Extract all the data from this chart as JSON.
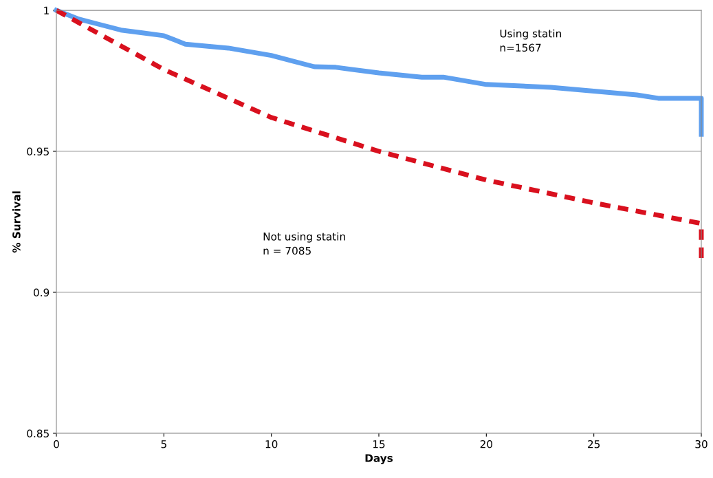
{
  "chart_data": {
    "type": "line",
    "xlabel": "Days",
    "ylabel": "% Survival",
    "series": [
      {
        "color": "#5fa0ef",
        "line_style": "solid",
        "x": [
          0,
          1,
          2,
          3,
          4,
          5,
          6,
          8,
          10,
          11,
          12,
          13,
          15,
          17,
          18,
          20,
          23,
          24,
          27,
          28,
          30,
          30
        ],
        "values": [
          1.0,
          0.997,
          0.995,
          0.993,
          0.992,
          0.991,
          0.988,
          0.9866,
          0.984,
          0.982,
          0.98,
          0.9798,
          0.9778,
          0.9763,
          0.9763,
          0.9737,
          0.9727,
          0.972,
          0.97,
          0.9688,
          0.9688,
          0.956
        ]
      },
      {
        "color": "#d9101e",
        "line_style": "dashed",
        "x": [
          0,
          5,
          10,
          15,
          20,
          25,
          30,
          30
        ],
        "values": [
          1.0,
          0.979,
          0.962,
          0.95,
          0.9398,
          0.9317,
          0.9244,
          0.912
        ]
      }
    ],
    "annotations": [
      "Using statin\nn=1567",
      "Not using statin\nn = 7085"
    ],
    "xlim": [
      0,
      30
    ],
    "xticks": [
      0,
      5,
      10,
      15,
      20,
      25,
      30
    ],
    "ylim": [
      0.85,
      1
    ],
    "yticks": [
      {
        "value": 0.85,
        "label": "0.85"
      },
      {
        "value": 0.9,
        "label": "0.9"
      },
      {
        "value": 0.95,
        "label": "0.95"
      },
      {
        "value": 1,
        "label": "1"
      }
    ],
    "grid": "y",
    "marker": "none"
  }
}
